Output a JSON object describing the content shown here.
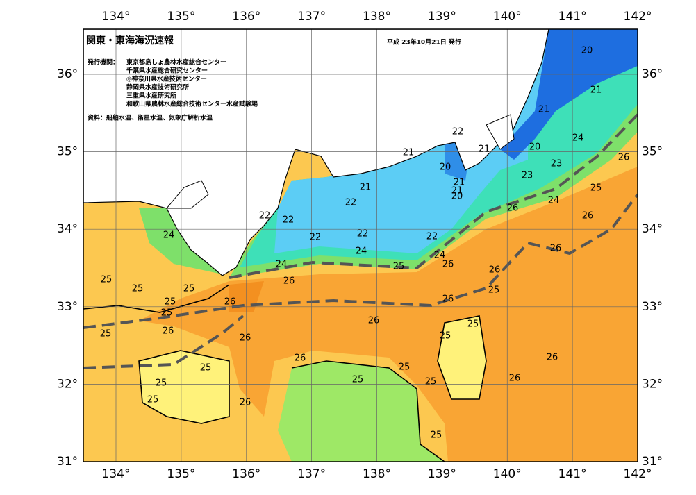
{
  "header": {
    "title": "関東・東海海況速報",
    "date": "平成 23年10月21日 発行",
    "issuer_label": "発行機関：",
    "issuers": [
      "東京都島しょ農林水産総合センター",
      "千葉県水産総合研究センター",
      "◎神奈川県水産技術センター",
      "静岡県水産技術研究所",
      "三重県水産研究所",
      "和歌山県農林水産総合技術センター水産試験場"
    ],
    "source": "資料：船舶水温、衛星水温、気象庁解析水温"
  },
  "map": {
    "lon_ticks": [
      {
        "value": 134,
        "label": "134°"
      },
      {
        "value": 135,
        "label": "135°"
      },
      {
        "value": 136,
        "label": "136°"
      },
      {
        "value": 137,
        "label": "137°"
      },
      {
        "value": 138,
        "label": "138°"
      },
      {
        "value": 139,
        "label": "139°"
      },
      {
        "value": 140,
        "label": "140°"
      },
      {
        "value": 141,
        "label": "141°"
      },
      {
        "value": 142,
        "label": "142°"
      }
    ],
    "lat_ticks": [
      {
        "value": 31,
        "label": "31°"
      },
      {
        "value": 32,
        "label": "32°"
      },
      {
        "value": 33,
        "label": "33°"
      },
      {
        "value": 34,
        "label": "34°"
      },
      {
        "value": 35,
        "label": "35°"
      },
      {
        "value": 36,
        "label": "36°"
      }
    ],
    "contour_labels": [
      20,
      21,
      21,
      20,
      24,
      26,
      23,
      23,
      25,
      24,
      26,
      26,
      26,
      22,
      21,
      21,
      20,
      21,
      21,
      20,
      21,
      22,
      22,
      22,
      22,
      22,
      22,
      24,
      24,
      24,
      24,
      25,
      26,
      26,
      25,
      25,
      25,
      26,
      25,
      26,
      25,
      25,
      26,
      26,
      26,
      25,
      25,
      26,
      25,
      26,
      26,
      25,
      25,
      25,
      26,
      25,
      25,
      25,
      26,
      25
    ]
  }
}
